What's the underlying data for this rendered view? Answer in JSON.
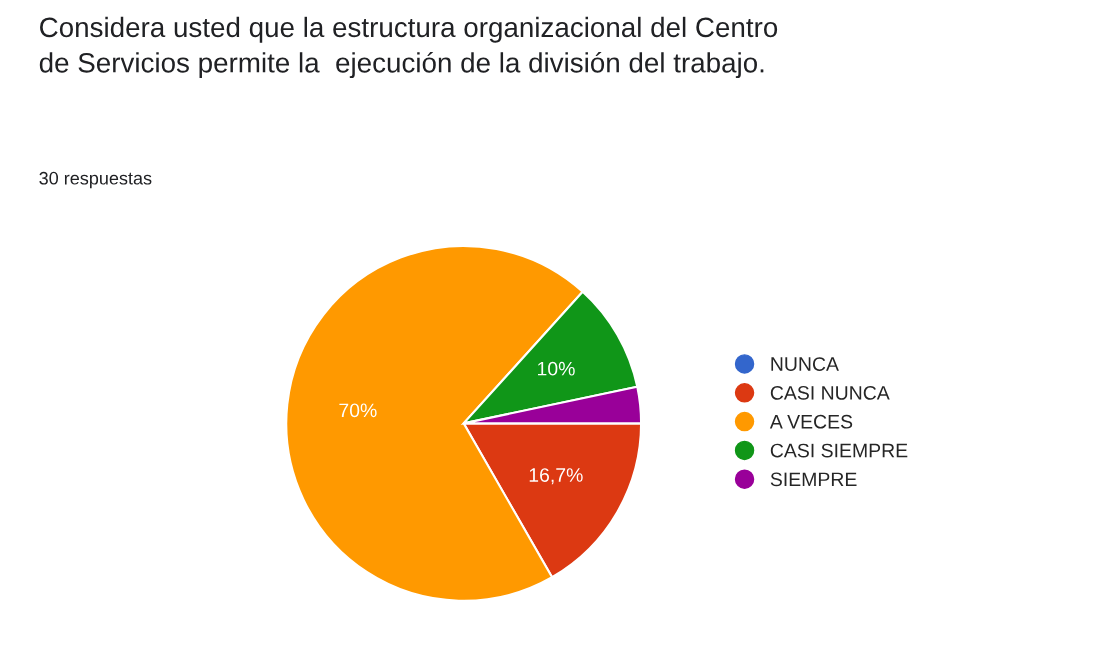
{
  "chart_data": {
    "type": "pie",
    "title": "Considera usted que la estructura organizacional del Centro\nde Servicios permite la  ejecución de la división del trabajo.",
    "subtitle": "30 respuestas",
    "categories": [
      "NUNCA",
      "CASI NUNCA",
      "A VECES",
      "CASI SIEMPRE",
      "SIEMPRE"
    ],
    "values": [
      0,
      16.7,
      70,
      10,
      3.3
    ],
    "colors": [
      "#3366cc",
      "#dc3912",
      "#ff9900",
      "#109618",
      "#990099"
    ],
    "value_labels": [
      null,
      "16,7%",
      "70%",
      "10%",
      null
    ],
    "legend": "right"
  }
}
